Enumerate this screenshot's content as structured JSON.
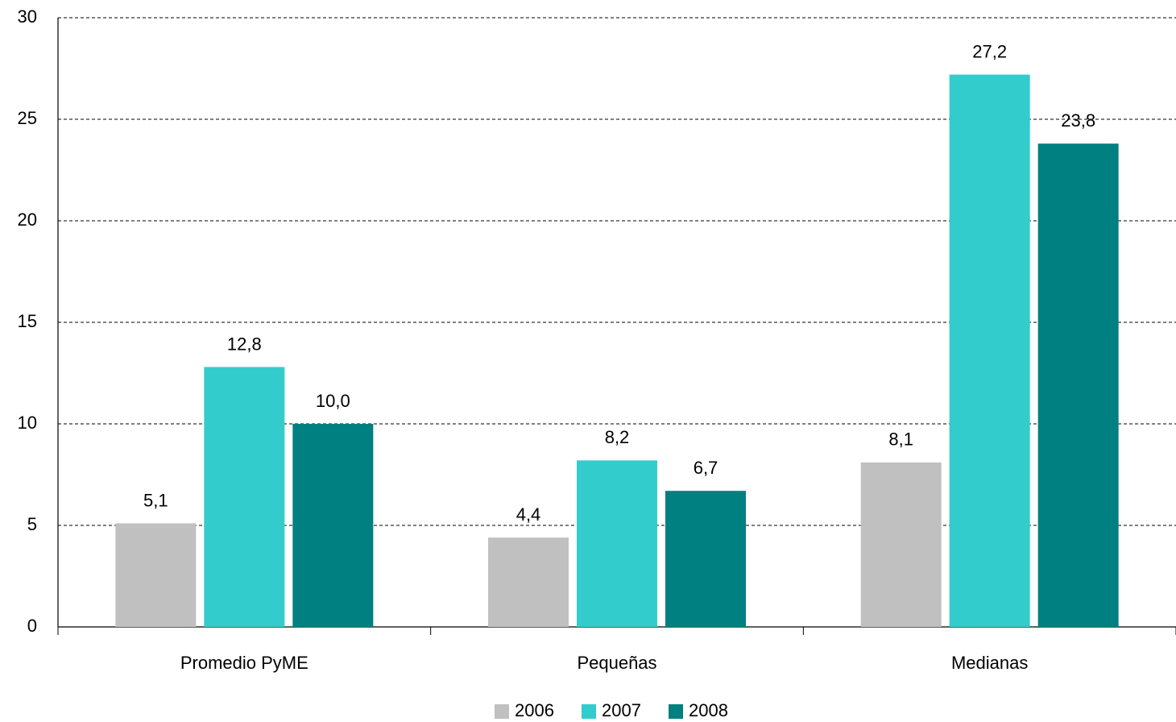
{
  "chart_data": {
    "type": "bar",
    "categories": [
      "Promedio PyME",
      "Pequeñas",
      "Medianas"
    ],
    "series": [
      {
        "name": "2006",
        "color": "#c0c0c0",
        "values": [
          5.1,
          4.4,
          8.1
        ],
        "value_labels": [
          "5,1",
          "4,4",
          "8,1"
        ]
      },
      {
        "name": "2007",
        "color": "#33cccc",
        "values": [
          12.8,
          8.2,
          27.2
        ],
        "value_labels": [
          "12,8",
          "8,2",
          "27,2"
        ]
      },
      {
        "name": "2008",
        "color": "#008080",
        "values": [
          10.0,
          6.7,
          23.8
        ],
        "value_labels": [
          "10,0",
          "6,7",
          "23,8"
        ]
      }
    ],
    "ylim": [
      0,
      30
    ],
    "yticks": [
      0,
      5,
      10,
      15,
      20,
      25,
      30
    ],
    "grid": true,
    "legend": "bottom"
  }
}
